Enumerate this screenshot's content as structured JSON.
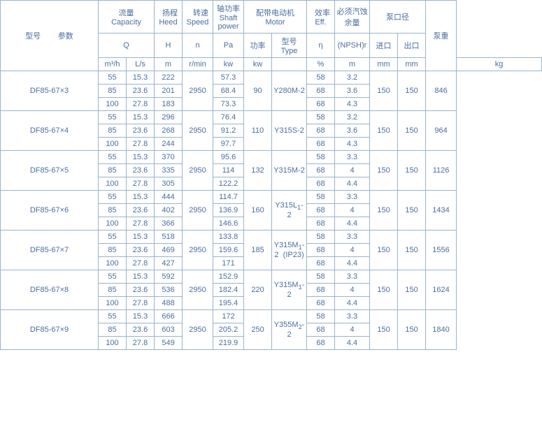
{
  "head": {
    "model_param": "型号        参数",
    "capacity": {
      "line1": "流量",
      "line2": "Capacity"
    },
    "head": {
      "line1": "扬程",
      "line2": "Heed"
    },
    "speed": {
      "line1": "转速",
      "line2": "Speed"
    },
    "shaft": {
      "line1": "轴功率",
      "line2": "Shaft power"
    },
    "motor": {
      "line1": "配带电动机",
      "line2": "Motor"
    },
    "eff": {
      "line1": "效率",
      "line2": "Eff."
    },
    "npsh_top": "必须汽蚀余量",
    "diameter": "泵口径",
    "weight": "泵重",
    "Q": "Q",
    "H": "H",
    "n": "n",
    "Pa": "Pa",
    "power": "功率",
    "type": {
      "line1": "型号",
      "line2": "Type"
    },
    "eta": "η",
    "npsh": "(NPSH)r",
    "inlet": "进口",
    "outlet": "出口",
    "u_m3h": "m³/h",
    "u_ls": "L/s",
    "u_m": "m",
    "u_rmin": "r/min",
    "u_kw": "kw",
    "u_pct": "%",
    "u_mm": "mm",
    "u_kg": "kg"
  },
  "groups": [
    {
      "model": "DF85-67×3",
      "speed": "2950",
      "motor_kw": "90",
      "motor_type_html": "Y280M-2",
      "inlet": "150",
      "outlet": "150",
      "weight": "846",
      "rows": [
        {
          "m3h": "55",
          "ls": "15.3",
          "h": "222",
          "pa": "57.3",
          "eff": "58",
          "npsh": "3.2"
        },
        {
          "m3h": "85",
          "ls": "23.6",
          "h": "201",
          "pa": "68.4",
          "eff": "68",
          "npsh": "3.6"
        },
        {
          "m3h": "100",
          "ls": "27.8",
          "h": "183",
          "pa": "73.3",
          "eff": "68",
          "npsh": "4.3"
        }
      ]
    },
    {
      "model": "DF85-67×4",
      "speed": "2950",
      "motor_kw": "110",
      "motor_type_html": "Y315S-2",
      "inlet": "150",
      "outlet": "150",
      "weight": "964",
      "rows": [
        {
          "m3h": "55",
          "ls": "15.3",
          "h": "296",
          "pa": "76.4",
          "eff": "58",
          "npsh": "3.2"
        },
        {
          "m3h": "85",
          "ls": "23.6",
          "h": "268",
          "pa": "91.2",
          "eff": "68",
          "npsh": "3.6"
        },
        {
          "m3h": "100",
          "ls": "27.8",
          "h": "244",
          "pa": "97.7",
          "eff": "68",
          "npsh": "4.3"
        }
      ]
    },
    {
      "model": "DF85-67×5",
      "speed": "2950",
      "motor_kw": "132",
      "motor_type_html": "Y315M-2",
      "inlet": "150",
      "outlet": "150",
      "weight": "1126",
      "rows": [
        {
          "m3h": "55",
          "ls": "15.3",
          "h": "370",
          "pa": "95.6",
          "eff": "58",
          "npsh": "3.3"
        },
        {
          "m3h": "85",
          "ls": "23.6",
          "h": "335",
          "pa": "114",
          "eff": "68",
          "npsh": "4"
        },
        {
          "m3h": "100",
          "ls": "27.8",
          "h": "305",
          "pa": "122.2",
          "eff": "68",
          "npsh": "4.4"
        }
      ]
    },
    {
      "model": "DF85-67×6",
      "speed": "2950",
      "motor_kw": "160",
      "motor_type_html": "Y315L<sub>1</sub>-2",
      "inlet": "150",
      "outlet": "150",
      "weight": "1434",
      "rows": [
        {
          "m3h": "55",
          "ls": "15.3",
          "h": "444",
          "pa": "114.7",
          "eff": "58",
          "npsh": "3.3"
        },
        {
          "m3h": "85",
          "ls": "23.6",
          "h": "402",
          "pa": "136.9",
          "eff": "68",
          "npsh": "4"
        },
        {
          "m3h": "100",
          "ls": "27.8",
          "h": "366",
          "pa": "146.6",
          "eff": "68",
          "npsh": "4.4"
        }
      ]
    },
    {
      "model": "DF85-67×7",
      "speed": "2950",
      "motor_kw": "185",
      "motor_type_html": "Y315M<sub>1</sub>-2&nbsp;&nbsp;(IP23)",
      "inlet": "150",
      "outlet": "150",
      "weight": "1556",
      "rows": [
        {
          "m3h": "55",
          "ls": "15.3",
          "h": "518",
          "pa": "133.8",
          "eff": "58",
          "npsh": "3.3"
        },
        {
          "m3h": "85",
          "ls": "23.6",
          "h": "469",
          "pa": "159.6",
          "eff": "68",
          "npsh": "4"
        },
        {
          "m3h": "100",
          "ls": "27.8",
          "h": "427",
          "pa": "171",
          "eff": "68",
          "npsh": "4.4"
        }
      ]
    },
    {
      "model": "DF85-67×8",
      "speed": "2950",
      "motor_kw": "220",
      "motor_type_html": "Y315M<sub>1</sub>-2",
      "inlet": "150",
      "outlet": "150",
      "weight": "1624",
      "rows": [
        {
          "m3h": "55",
          "ls": "15.3",
          "h": "592",
          "pa": "152.9",
          "eff": "58",
          "npsh": "3.3"
        },
        {
          "m3h": "85",
          "ls": "23.6",
          "h": "536",
          "pa": "182.4",
          "eff": "68",
          "npsh": "4"
        },
        {
          "m3h": "100",
          "ls": "27.8",
          "h": "488",
          "pa": "195.4",
          "eff": "68",
          "npsh": "4.4"
        }
      ]
    },
    {
      "model": "DF85-67×9",
      "speed": "2950",
      "motor_kw": "250",
      "motor_type_html": "Y355M<sub>2</sub>-2",
      "inlet": "150",
      "outlet": "150",
      "weight": "1840",
      "rows": [
        {
          "m3h": "55",
          "ls": "15.3",
          "h": "666",
          "pa": "172",
          "eff": "58",
          "npsh": "3.3"
        },
        {
          "m3h": "85",
          "ls": "23.6",
          "h": "603",
          "pa": "205.2",
          "eff": "68",
          "npsh": "4"
        },
        {
          "m3h": "100",
          "ls": "27.8",
          "h": "549",
          "pa": "219.9",
          "eff": "68",
          "npsh": "4.4"
        }
      ]
    }
  ]
}
